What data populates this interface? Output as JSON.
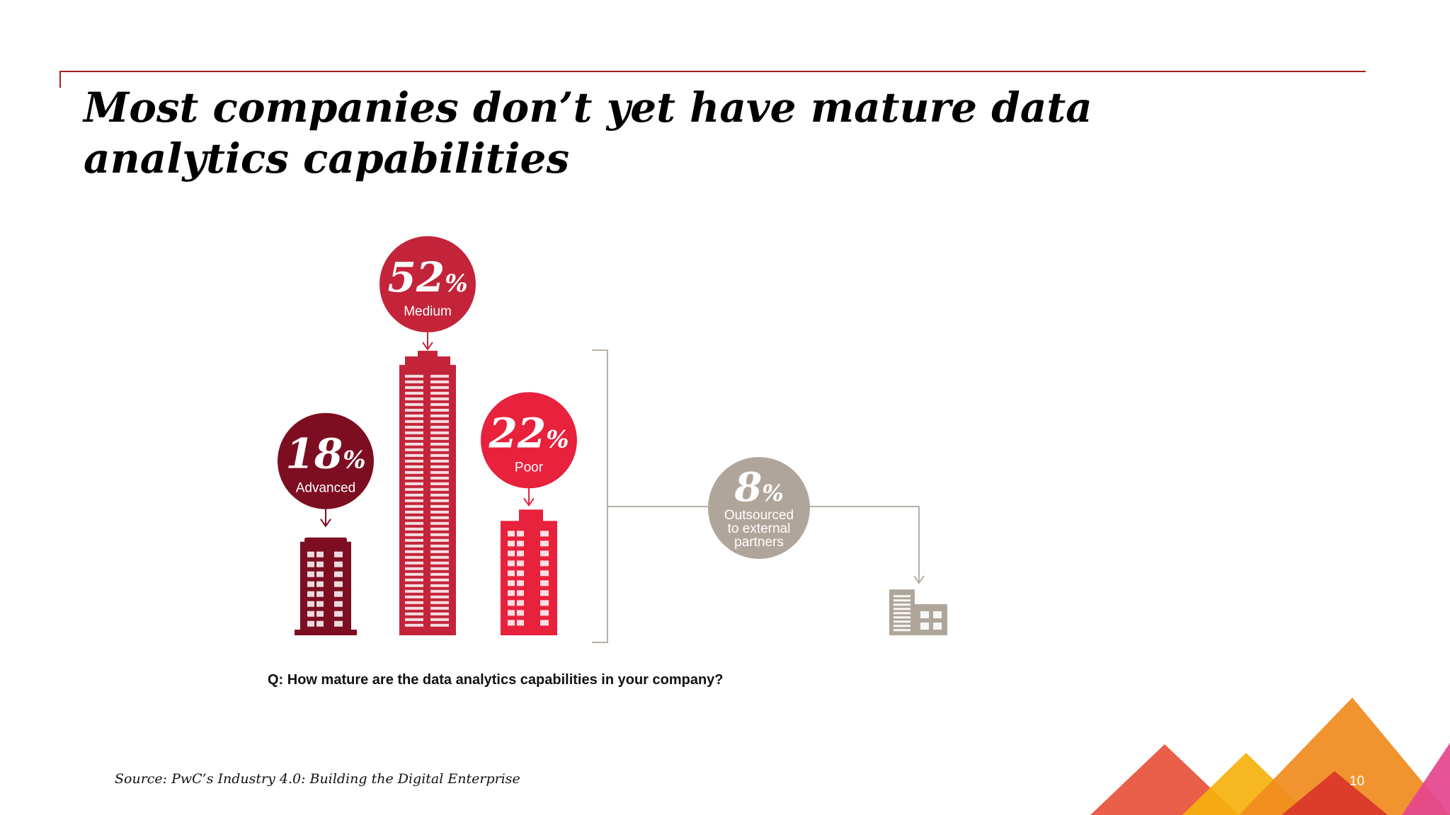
{
  "slide": {
    "title": "Most companies don’t yet have mature data\nanalytics capabilities",
    "question": "Q: How mature are the data analytics capabilities in your company?",
    "source": "Source: PwC’s Industry 4.0: Building the Digital Enterprise",
    "page_number": "10"
  },
  "colors": {
    "accent_rule": "#a32020",
    "decor_triangles": [
      "#e8513b",
      "#f6b10d",
      "#f08b1e",
      "#d9352a",
      "#e4448d"
    ]
  },
  "chart_data": {
    "type": "bar",
    "categories": [
      "Advanced",
      "Medium",
      "Poor",
      "Outsourced to external partners"
    ],
    "values": [
      18,
      52,
      22,
      8
    ],
    "value_labels": [
      "18%",
      "52%",
      "22%",
      "8%"
    ],
    "colors": [
      "#7d0e22",
      "#c3243a",
      "#e8213c",
      "#b0a59a"
    ],
    "unit": "%",
    "grouped_in_house": [
      "Advanced",
      "Medium",
      "Poor"
    ],
    "label_lines": {
      "Outsourced to external partners": [
        "Outsourced",
        "to external",
        "partners"
      ]
    },
    "title": "",
    "xlabel": "",
    "ylabel": "",
    "grid": false,
    "legend": "none"
  }
}
